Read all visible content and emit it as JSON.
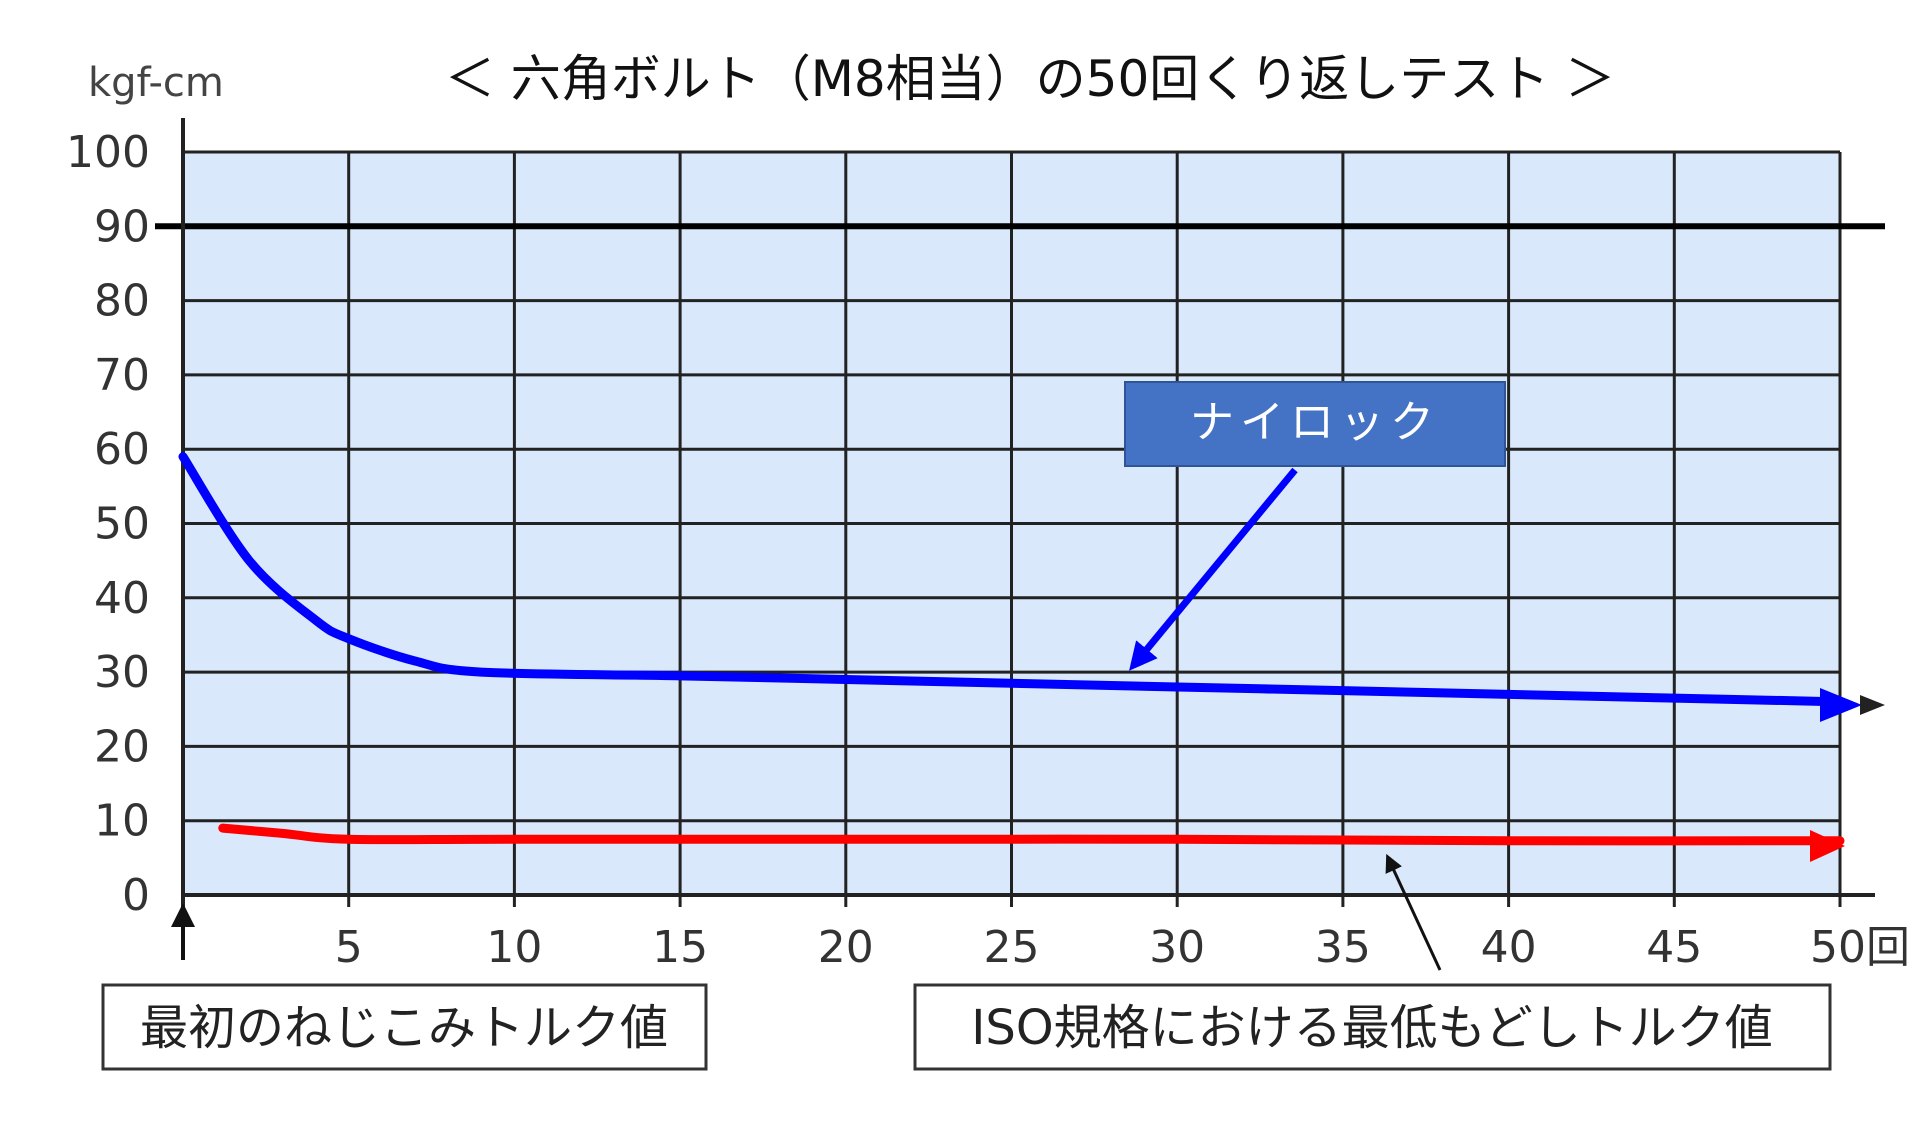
{
  "chart_data": {
    "type": "line",
    "title": "＜ 六角ボルト（M8相当）の50回くり返しテスト ＞",
    "ylabel": "kgf-cm",
    "x_unit_label": "回",
    "ylim": [
      0,
      100
    ],
    "xlim": [
      0,
      50
    ],
    "yticks": [
      "100",
      "90",
      "80",
      "70",
      "60",
      "50",
      "40",
      "30",
      "20",
      "10",
      "0"
    ],
    "xticks": [
      "5",
      "10",
      "15",
      "20",
      "25",
      "30",
      "35",
      "40",
      "45",
      "50"
    ],
    "reference_line": {
      "value": 90,
      "color": "#000000"
    },
    "series": [
      {
        "name": "ナイロック",
        "color": "#0000ff",
        "x": [
          0,
          2,
          4,
          5,
          7,
          9,
          15,
          20,
          25,
          30,
          35,
          40,
          45,
          50
        ],
        "y": [
          59,
          45,
          37,
          34.5,
          31.5,
          30,
          29.5,
          29,
          28.5,
          28,
          27.5,
          27,
          26.5,
          26
        ]
      },
      {
        "color": "#ff0000",
        "x": [
          1.2,
          3,
          5,
          10,
          20,
          30,
          40,
          50
        ],
        "y": [
          9,
          8.3,
          7.5,
          7.5,
          7.5,
          7.5,
          7.3,
          7.3
        ]
      }
    ],
    "annotations": {
      "initial_torque": "最初のねじこみトルク値",
      "iso_min": "ISO規格における最低もどしトルク値",
      "series_callout": "ナイロック"
    },
    "grid": true,
    "colors": {
      "plot_bg": "#d9e8fb",
      "grid": "#222222",
      "callout_bg": "#4472c4"
    }
  }
}
